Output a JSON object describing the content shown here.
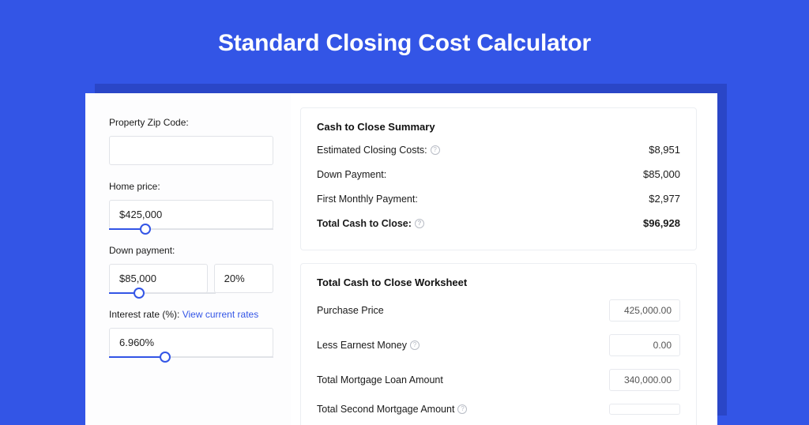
{
  "colors": {
    "page_bg": "#3355e6",
    "backdrop": "#2a46c7",
    "card_bg": "#ffffff",
    "text": "#1a1a1a",
    "input_border": "#e1e3e8",
    "link": "#3355e6",
    "slider_track": "#e1e3e8",
    "slider_fill": "#3355e6",
    "box_border": "#eceef2",
    "muted": "#b8bcc5"
  },
  "title": "Standard Closing Cost Calculator",
  "inputs": {
    "zip_label": "Property Zip Code:",
    "zip_value": "",
    "home_price_label": "Home price:",
    "home_price_value": "$425,000",
    "home_price_slider_pct": 22,
    "down_payment_label": "Down payment:",
    "down_payment_value": "$85,000",
    "down_payment_pct": "20%",
    "down_payment_slider_pct": 28,
    "interest_label_prefix": "Interest rate (%):",
    "interest_link": "View current rates",
    "interest_value": "6.960%",
    "interest_slider_pct": 34
  },
  "summary": {
    "heading": "Cash to Close Summary",
    "rows": [
      {
        "label": "Estimated Closing Costs:",
        "value": "$8,951",
        "help": true,
        "bold": false
      },
      {
        "label": "Down Payment:",
        "value": "$85,000",
        "help": false,
        "bold": false
      },
      {
        "label": "First Monthly Payment:",
        "value": "$2,977",
        "help": false,
        "bold": false
      },
      {
        "label": "Total Cash to Close:",
        "value": "$96,928",
        "help": true,
        "bold": true
      }
    ]
  },
  "worksheet": {
    "heading": "Total Cash to Close Worksheet",
    "rows": [
      {
        "label": "Purchase Price",
        "value": "425,000.00",
        "help": false
      },
      {
        "label": "Less Earnest Money",
        "value": "0.00",
        "help": true
      },
      {
        "label": "Total Mortgage Loan Amount",
        "value": "340,000.00",
        "help": false
      },
      {
        "label": "Total Second Mortgage Amount",
        "value": "",
        "help": true
      }
    ]
  }
}
